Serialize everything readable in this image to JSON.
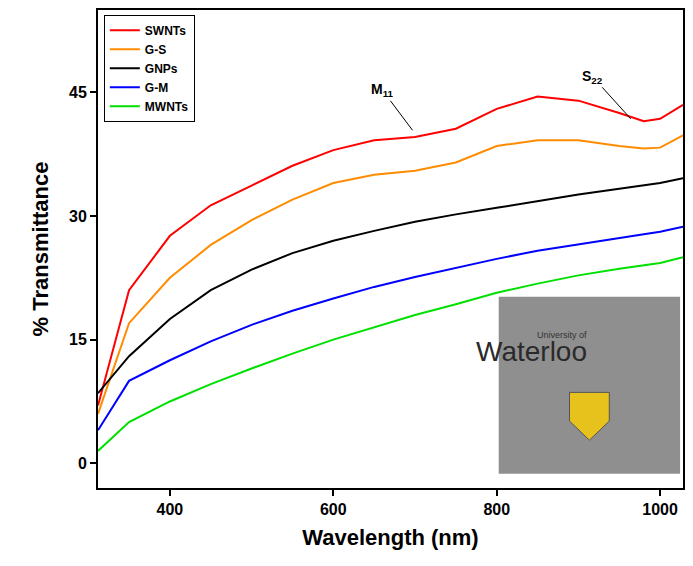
{
  "chart_data": {
    "type": "line",
    "x_label": "Wavelength (nm)",
    "y_label": "% Transmittance",
    "x": [
      312,
      350,
      400,
      450,
      500,
      550,
      600,
      650,
      700,
      750,
      800,
      850,
      900,
      950,
      980,
      1000,
      1028
    ],
    "series": [
      {
        "name": "SWNTs",
        "color": "#ff0000",
        "values": [
          7,
          21,
          27.6,
          31.3,
          33.7,
          36.1,
          38,
          39.2,
          39.6,
          40.6,
          43,
          44.5,
          44,
          42.5,
          41.5,
          41.8,
          43.5
        ]
      },
      {
        "name": "G-S",
        "color": "#ff8c00",
        "values": [
          6,
          17,
          22.5,
          26.5,
          29.5,
          32,
          34,
          35,
          35.5,
          36.5,
          38.5,
          39.2,
          39.2,
          38.5,
          38.2,
          38.3,
          39.8
        ]
      },
      {
        "name": "GNPs",
        "color": "#000000",
        "values": [
          8.5,
          13,
          17.5,
          21,
          23.5,
          25.5,
          27,
          28.2,
          29.3,
          30.2,
          31,
          31.8,
          32.6,
          33.3,
          33.7,
          34,
          34.6
        ]
      },
      {
        "name": "G-M",
        "color": "#0000ff",
        "values": [
          4,
          10,
          12.5,
          14.8,
          16.8,
          18.5,
          20,
          21.4,
          22.6,
          23.7,
          24.8,
          25.8,
          26.6,
          27.4,
          27.8,
          28.1,
          28.7
        ]
      },
      {
        "name": "MWNTs",
        "color": "#00e000",
        "values": [
          1.5,
          5,
          7.5,
          9.6,
          11.5,
          13.3,
          15,
          16.5,
          18,
          19.3,
          20.7,
          21.8,
          22.8,
          23.6,
          24,
          24.3,
          25
        ]
      }
    ],
    "xlim": [
      312,
      1028
    ],
    "ylim": [
      -3,
      55
    ],
    "xticks": [
      400,
      600,
      800,
      1000
    ],
    "yticks": [
      0,
      15,
      30,
      45
    ],
    "grid": false,
    "legend": "top left",
    "annotations": [
      {
        "text": "M",
        "subscript": "11",
        "x": 697,
        "y": 40.4
      },
      {
        "text": "S",
        "subscript": "22",
        "x": 964,
        "y": 41.8
      }
    ],
    "inset": {
      "lines": [
        "University of",
        "Waterloo"
      ]
    }
  }
}
